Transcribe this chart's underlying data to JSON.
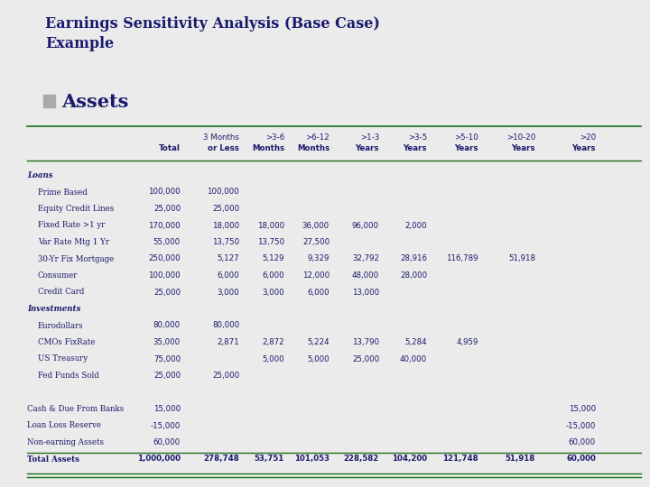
{
  "title": "Earnings Sensitivity Analysis (Base Case)\nExample",
  "subtitle": "Assets",
  "bg_color": "#ebebeb",
  "title_color": "#1a1a6e",
  "subtitle_color": "#1a1a6e",
  "bullet_color": "#aaaaaa",
  "header_line_color": "#1a6e1a",
  "table_line_color": "#1a6e1a",
  "col_headers_line1": [
    "",
    "3 Months",
    ">3-6",
    ">6-12",
    ">1-3",
    ">3-5",
    ">5-10",
    ">10-20",
    ">20"
  ],
  "col_headers_line2": [
    "Total",
    "or Less",
    "Months",
    "Months",
    "Years",
    "Years",
    "Years",
    "Years",
    "Years"
  ],
  "rows": [
    {
      "label": "Loans",
      "italic": true,
      "bold": true,
      "indent": false,
      "values": [
        "",
        "",
        "",
        "",
        "",
        "",
        "",
        "",
        ""
      ]
    },
    {
      "label": "Prime Based",
      "italic": false,
      "bold": false,
      "indent": true,
      "values": [
        "100,000",
        "100,000",
        "",
        "",
        "",
        "",
        "",
        "",
        ""
      ]
    },
    {
      "label": "Equity Credit Lines",
      "italic": false,
      "bold": false,
      "indent": true,
      "values": [
        "25,000",
        "25,000",
        "",
        "",
        "",
        "",
        "",
        "",
        ""
      ]
    },
    {
      "label": "Fixed Rate >1 yr",
      "italic": false,
      "bold": false,
      "indent": true,
      "values": [
        "170,000",
        "18,000",
        "18,000",
        "36,000",
        "96,000",
        "2,000",
        "",
        "",
        ""
      ]
    },
    {
      "label": "Var Rate Mtg 1 Yr",
      "italic": false,
      "bold": false,
      "indent": true,
      "values": [
        "55,000",
        "13,750",
        "13,750",
        "27,500",
        "",
        "",
        "",
        "",
        ""
      ]
    },
    {
      "label": "30-Yr Fix Mortgage",
      "italic": false,
      "bold": false,
      "indent": true,
      "values": [
        "250,000",
        "5,127",
        "5,129",
        "9,329",
        "32,792",
        "28,916",
        "116,789",
        "51,918",
        ""
      ]
    },
    {
      "label": "Consumer",
      "italic": false,
      "bold": false,
      "indent": true,
      "values": [
        "100,000",
        "6,000",
        "6,000",
        "12,000",
        "48,000",
        "28,000",
        "",
        "",
        ""
      ]
    },
    {
      "label": "Credit Card",
      "italic": false,
      "bold": false,
      "indent": true,
      "values": [
        "25,000",
        "3,000",
        "3,000",
        "6,000",
        "13,000",
        "",
        "",
        "",
        ""
      ]
    },
    {
      "label": "Investments",
      "italic": true,
      "bold": true,
      "indent": false,
      "values": [
        "",
        "",
        "",
        "",
        "",
        "",
        "",
        "",
        ""
      ]
    },
    {
      "label": "Eurodollars",
      "italic": false,
      "bold": false,
      "indent": true,
      "values": [
        "80,000",
        "80,000",
        "",
        "",
        "",
        "",
        "",
        "",
        ""
      ]
    },
    {
      "label": "CMOs FixRate",
      "italic": false,
      "bold": false,
      "indent": true,
      "values": [
        "35,000",
        "2,871",
        "2,872",
        "5,224",
        "13,790",
        "5,284",
        "4,959",
        "",
        ""
      ]
    },
    {
      "label": "US Treasury",
      "italic": false,
      "bold": false,
      "indent": true,
      "values": [
        "75,000",
        "",
        "5,000",
        "5,000",
        "25,000",
        "40,000",
        "",
        "",
        ""
      ]
    },
    {
      "label": "Fed Funds Sold",
      "italic": false,
      "bold": false,
      "indent": true,
      "values": [
        "25,000",
        "25,000",
        "",
        "",
        "",
        "",
        "",
        "",
        ""
      ]
    },
    {
      "label": "",
      "italic": false,
      "bold": false,
      "indent": false,
      "values": [
        "",
        "",
        "",
        "",
        "",
        "",
        "",
        "",
        ""
      ]
    },
    {
      "label": "Cash & Due From Banks",
      "italic": false,
      "bold": false,
      "indent": false,
      "values": [
        "15,000",
        "",
        "",
        "",
        "",
        "",
        "",
        "",
        "15,000"
      ]
    },
    {
      "label": "Loan Loss Reserve",
      "italic": false,
      "bold": false,
      "indent": false,
      "values": [
        "-15,000",
        "",
        "",
        "",
        "",
        "",
        "",
        "",
        "-15,000"
      ]
    },
    {
      "label": "Non-earning Assets",
      "italic": false,
      "bold": false,
      "indent": false,
      "values": [
        "60,000",
        "",
        "",
        "",
        "",
        "",
        "",
        "",
        "60,000"
      ]
    },
    {
      "label": "Total Assets",
      "italic": false,
      "bold": true,
      "indent": false,
      "values": [
        "1,000,000",
        "278,748",
        "53,751",
        "101,053",
        "228,582",
        "104,200",
        "121,748",
        "51,918",
        "60,000"
      ]
    }
  ]
}
